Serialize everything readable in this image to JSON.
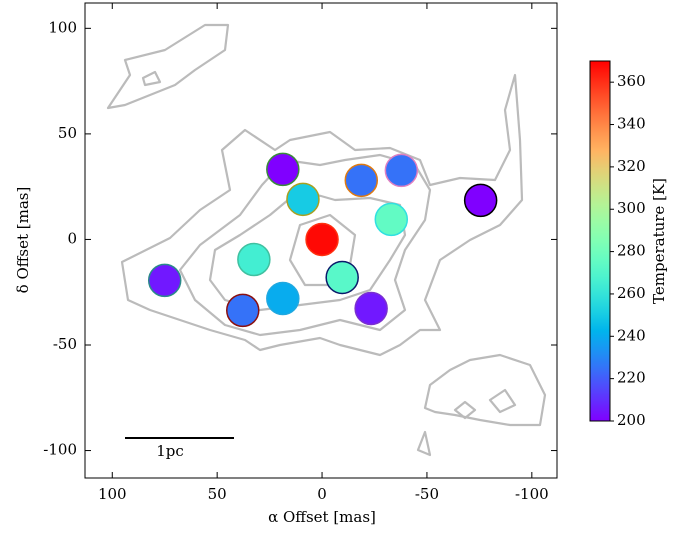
{
  "chart_data": {
    "type": "scatter",
    "xlabel": "α Offset [mas]",
    "ylabel": "δ Offset [mas]",
    "x": [
      18.7,
      9.1,
      0,
      32.5,
      75,
      18.7,
      37.8,
      -9.6,
      -23.4,
      -18.7,
      -37.8,
      -33,
      -75.6
    ],
    "y": [
      33.2,
      19,
      0,
      -9.5,
      -19.4,
      -28,
      -33.6,
      -18,
      -32.7,
      28,
      32.7,
      9.5,
      18.5
    ],
    "c": [
      200,
      250,
      368,
      265,
      205,
      240,
      225,
      272,
      205,
      225,
      225,
      275,
      200
    ],
    "edgecolors": [
      "#3a8a3a",
      "#a8a020",
      "#ff3010",
      "#40c0a0",
      "#2a8a8a",
      "#20a8e0",
      "#8a1010",
      "#0a1a6a",
      "#7a30d0",
      "#e07a10",
      "#e080c0",
      "#30e0e0",
      "#000000"
    ],
    "xlim": [
      113,
      -112
    ],
    "ylim": [
      -113,
      112
    ],
    "xticks": [
      100,
      50,
      0,
      -50,
      -100
    ],
    "yticks": [
      100,
      50,
      0,
      -50,
      -100
    ],
    "colormap": "rainbow",
    "clim": [
      200,
      370
    ],
    "cticks": [
      200,
      220,
      240,
      260,
      280,
      300,
      320,
      340,
      360
    ],
    "clabel": "Temperature [K]",
    "scalebar": "1pc"
  }
}
